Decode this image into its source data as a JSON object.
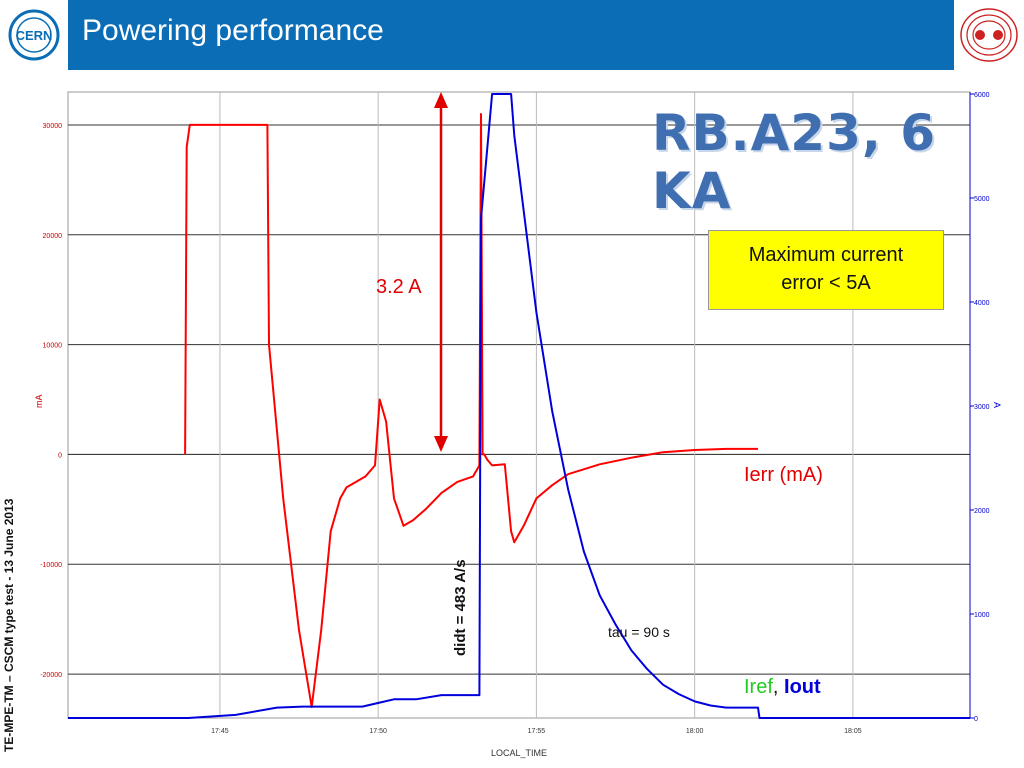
{
  "header": {
    "title": "Powering performance",
    "logo_text": "CERN"
  },
  "side_note": "TE-MPE-TM – CSCM type test - 13 June 2013",
  "big_title": "RB.A23, 6 KA",
  "callout": {
    "line1": "Maximum current",
    "line2": "error < 5A"
  },
  "annotations": {
    "delta": "3.2 A",
    "didt": "didt = 483 A/s",
    "tau": "tau = 90 s",
    "ierr": "Ierr (mA)",
    "iref": "Iref",
    "sep": ",",
    "iout": "Iout"
  },
  "colors": {
    "ierr": "#ff0000",
    "iout": "#0000dd",
    "iref": "#22cc22",
    "header": "#0a6db6"
  },
  "chart_data": {
    "type": "line",
    "xlabel": "LOCAL_TIME",
    "ylabel_left": "mA",
    "ylabel_right": "A",
    "x_ticks": [
      "17:45",
      "17:50",
      "17:55",
      "18:00",
      "18:05"
    ],
    "x_range_min": [
      40.2,
      68.7
    ],
    "left_ticks": [
      30000,
      20000,
      10000,
      0,
      -10000,
      -20000
    ],
    "left_ylim": [
      -24000,
      33000
    ],
    "right_ticks": [
      6000,
      5000,
      4000,
      3000,
      2000,
      1000,
      0
    ],
    "right_ylim": [
      0,
      6000
    ],
    "grid": true,
    "series": [
      {
        "name": "Ierr (mA)",
        "axis": "left",
        "x": [
          43.9,
          43.95,
          44.05,
          46.5,
          46.55,
          47.0,
          47.5,
          47.9,
          48.2,
          48.5,
          48.8,
          49.0,
          49.3,
          49.6,
          49.9,
          50.05,
          50.25,
          50.5,
          50.8,
          51.1,
          51.5,
          52.0,
          52.5,
          53.0,
          53.2,
          53.25,
          53.3,
          53.35,
          53.45,
          53.6,
          54.0,
          54.2,
          54.3,
          54.6,
          55.0,
          55.5,
          56.0,
          57.0,
          58.0,
          59.0,
          60.0,
          61.0,
          62.0
        ],
        "y": [
          0,
          28000,
          30000,
          30000,
          10000,
          -4000,
          -16000,
          -23000,
          -16000,
          -7000,
          -4000,
          -3000,
          -2500,
          -2000,
          -1000,
          5000,
          3000,
          -4000,
          -6500,
          -6000,
          -5000,
          -3500,
          -2500,
          -2000,
          -1000,
          31000,
          0,
          0,
          -500,
          -1000,
          -900,
          -7000,
          -8000,
          -6500,
          -4000,
          -2800,
          -1800,
          -900,
          -300,
          200,
          400,
          500,
          500
        ]
      },
      {
        "name": "Iout",
        "axis": "right",
        "x": [
          40.2,
          44.0,
          45.5,
          46.8,
          47.6,
          49.5,
          50.5,
          51.2,
          52.0,
          53.0,
          53.2,
          53.25,
          53.6,
          54.2,
          54.3,
          55.0,
          55.5,
          56.0,
          56.5,
          57.0,
          57.5,
          58.0,
          58.5,
          59.0,
          59.5,
          60.0,
          60.5,
          61.0,
          61.5,
          62.0,
          62.05,
          68.7
        ],
        "y": [
          0,
          0,
          30,
          100,
          110,
          110,
          180,
          180,
          220,
          220,
          220,
          4800,
          6000,
          6000,
          5600,
          3900,
          2950,
          2200,
          1600,
          1180,
          900,
          650,
          470,
          320,
          230,
          160,
          120,
          100,
          100,
          100,
          0,
          0
        ]
      }
    ]
  }
}
